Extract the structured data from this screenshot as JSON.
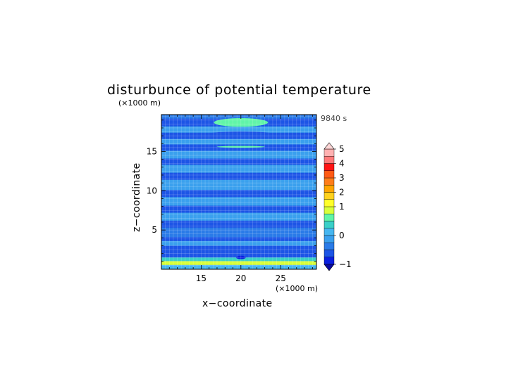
{
  "chart_data": {
    "type": "heatmap",
    "title": "disturbunce of potential temperature",
    "xlabel": "x−coordinate",
    "ylabel": "z−coordinate",
    "x_unit": "(×1000 m)",
    "y_unit": "(×1000 m)",
    "time_label": "9840 s",
    "xlim": [
      10,
      29.5
    ],
    "ylim": [
      0,
      19.7
    ],
    "x_ticks": [
      "15",
      "20",
      "25"
    ],
    "y_ticks": [
      "5",
      "10",
      "15"
    ],
    "colorbar": {
      "levels": [
        -1,
        -0.75,
        -0.5,
        -0.25,
        0,
        0.25,
        0.5,
        0.75,
        1,
        1.5,
        2,
        2.5,
        3,
        3.5,
        4,
        4.5,
        5
      ],
      "colors": [
        "#0a1fe0",
        "#1d55e6",
        "#2a7be8",
        "#3aa0ee",
        "#46b6f0",
        "#3ad0c8",
        "#60f5a8",
        "#d9ff3a",
        "#ffff2a",
        "#ffd21e",
        "#ffa500",
        "#ff7d1a",
        "#ff5a14",
        "#ff1414",
        "#ff7a7a",
        "#ffb1b1"
      ],
      "tick_labels": [
        "5",
        "4",
        "3",
        "2",
        "1",
        "0",
        "−1"
      ],
      "extend": "both"
    },
    "field": {
      "background_value": -0.4,
      "bands": [
        {
          "z_range": [
            0,
            0.55
          ],
          "value": 0.2
        },
        {
          "z_range": [
            0.55,
            1.05
          ],
          "value": 0.75
        },
        {
          "z_range": [
            1.05,
            1.5
          ],
          "value": 0.3
        },
        {
          "z_range": [
            1.5,
            3.0
          ],
          "value": -0.6
        },
        {
          "z_range": [
            3.0,
            3.6
          ],
          "value": -0.2
        },
        {
          "z_range": [
            3.6,
            4.1
          ],
          "value": -0.6
        },
        {
          "z_range": [
            4.1,
            5.3
          ],
          "value": -0.3
        },
        {
          "z_range": [
            5.3,
            6.2
          ],
          "value": -0.6
        },
        {
          "z_range": [
            6.2,
            7.2
          ],
          "value": -0.2
        },
        {
          "z_range": [
            7.2,
            8.1
          ],
          "value": -0.6
        },
        {
          "z_range": [
            8.1,
            9.2
          ],
          "value": -0.2
        },
        {
          "z_range": [
            9.2,
            10.1
          ],
          "value": -0.6
        },
        {
          "z_range": [
            10.1,
            11.4
          ],
          "value": -0.2
        },
        {
          "z_range": [
            11.4,
            12.3
          ],
          "value": -0.6
        },
        {
          "z_range": [
            12.3,
            13.3
          ],
          "value": -0.2
        },
        {
          "z_range": [
            13.3,
            14.1
          ],
          "value": -0.6
        },
        {
          "z_range": [
            14.1,
            15.1
          ],
          "value": -0.2
        },
        {
          "z_range": [
            15.1,
            15.9
          ],
          "value": -0.6
        },
        {
          "z_range": [
            15.9,
            16.6
          ],
          "value": -0.2
        },
        {
          "z_range": [
            16.6,
            17.4
          ],
          "value": -0.6
        },
        {
          "z_range": [
            17.4,
            18.2
          ],
          "value": -0.2
        },
        {
          "z_range": [
            18.2,
            19.2
          ],
          "value": -0.6
        },
        {
          "z_range": [
            19.2,
            19.7
          ],
          "value": -0.3
        }
      ],
      "blobs": [
        {
          "x": 20,
          "z": 18.7,
          "rx": 3.4,
          "rz": 0.55,
          "value": 0.6
        },
        {
          "x": 20,
          "z": 17.1,
          "rx": 2.6,
          "rz": 0.28,
          "value": -0.9
        },
        {
          "x": 20,
          "z": 17.1,
          "rx": 4.6,
          "rz": 0.45,
          "value": -0.7
        },
        {
          "x": 20,
          "z": 15.6,
          "rx": 3.0,
          "rz": 0.12,
          "value": 0.6
        },
        {
          "x": 20,
          "z": 1.5,
          "rx": 0.6,
          "rz": 0.22,
          "value": -0.9
        }
      ]
    }
  }
}
